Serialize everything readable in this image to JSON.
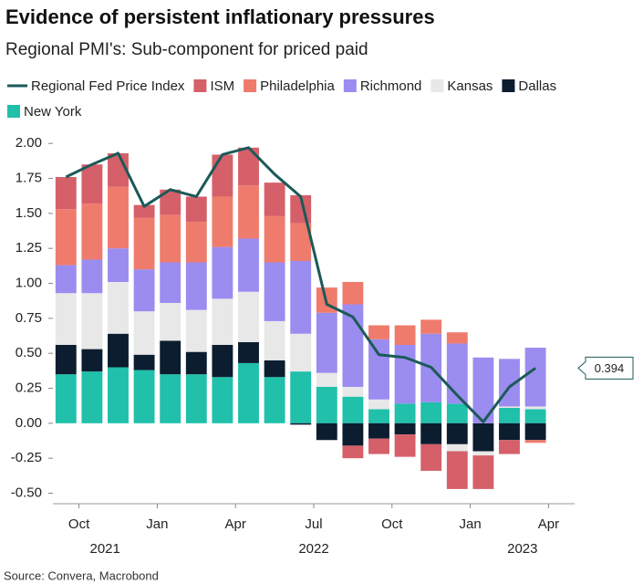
{
  "chart_data": {
    "type": "bar",
    "title": "Evidence of persistent inflationary pressures",
    "subtitle": "Regional PMI's: Sub-component for priced paid",
    "source": "Source: Convera, Macrobond",
    "categories": [
      null,
      "Oct",
      null,
      null,
      "Jan",
      null,
      null,
      "Apr",
      null,
      null,
      "Jul",
      null,
      null,
      "Oct",
      null,
      null,
      "Jan",
      null,
      null,
      "Apr"
    ],
    "years": [
      null,
      null,
      "2021",
      null,
      null,
      null,
      null,
      null,
      null,
      null,
      "2022",
      null,
      null,
      null,
      null,
      null,
      null,
      null,
      "2023",
      null
    ],
    "ylim": [
      -0.575,
      2.06
    ],
    "yticks": [
      {
        "value": 2,
        "label": "2.00"
      },
      1.75,
      {
        "value": 1.5,
        "label": "1.50"
      },
      1.25,
      {
        "value": 1,
        "label": "1.00"
      },
      0.75,
      {
        "value": 0.5,
        "label": "0.50"
      },
      0.25,
      {
        "value": 0,
        "label": "0.00"
      },
      -0.25,
      {
        "value": -0.5,
        "label": "-0.50"
      }
    ],
    "series": [
      {
        "name": "Regional Fed Price Index",
        "type": "line",
        "color": "#1b5a58",
        "values": [
          1.76,
          1.85,
          1.93,
          1.55,
          1.67,
          1.62,
          1.92,
          1.97,
          1.78,
          1.62,
          0.85,
          0.76,
          0.49,
          0.47,
          0.4,
          0.2,
          0.01,
          0.26,
          0.394,
          null
        ],
        "value_labels": [
          null,
          null,
          null,
          null,
          null,
          null,
          null,
          null,
          null,
          null,
          null,
          null,
          null,
          null,
          null,
          null,
          null,
          null,
          "0.394",
          null
        ]
      },
      {
        "name": "ISM",
        "color": "#d5606a",
        "values": [
          0.23,
          0.28,
          0.24,
          0.09,
          0.18,
          0.18,
          0.3,
          0.27,
          0.24,
          0.2,
          0,
          -0.09,
          -0.11,
          -0.16,
          -0.19,
          -0.27,
          -0.24,
          -0.1,
          0,
          null
        ]
      },
      {
        "name": "Philadelphia",
        "color": "#ef7b6c",
        "values": [
          0.4,
          0.4,
          0.44,
          0.37,
          0.34,
          0.29,
          0.36,
          0.38,
          0.33,
          0.27,
          0.18,
          0.16,
          0.1,
          0.14,
          0.1,
          0.08,
          0,
          0,
          -0.02,
          null
        ]
      },
      {
        "name": "Richmond",
        "color": "#9b8cf0",
        "values": [
          0.2,
          0.24,
          0.24,
          0.3,
          0.29,
          0.34,
          0.37,
          0.38,
          0.42,
          0.52,
          0.43,
          0.59,
          0.43,
          0.42,
          0.49,
          0.43,
          0.47,
          0.34,
          0.42,
          null
        ]
      },
      {
        "name": "Kansas",
        "color": "#e8e8e8",
        "values": [
          0.37,
          0.4,
          0.37,
          0.31,
          0.27,
          0.3,
          0.33,
          0.36,
          0.28,
          0.27,
          0.1,
          0.07,
          0.07,
          0,
          0,
          -0.05,
          -0.03,
          0.01,
          0.02,
          null
        ]
      },
      {
        "name": "Dallas",
        "color": "#0c1d30",
        "values": [
          0.21,
          0.16,
          0.24,
          0.11,
          0.24,
          0.16,
          0.23,
          0.15,
          0.12,
          -0.01,
          -0.12,
          -0.16,
          -0.11,
          -0.08,
          -0.15,
          -0.15,
          -0.2,
          -0.12,
          -0.12,
          null
        ]
      },
      {
        "name": "New York",
        "color": "#20c0aa",
        "values": [
          0.35,
          0.37,
          0.4,
          0.38,
          0.35,
          0.35,
          0.33,
          0.43,
          0.33,
          0.37,
          0.26,
          0.19,
          0.1,
          0.14,
          0.15,
          0.14,
          0,
          0.11,
          0.1,
          null
        ]
      }
    ]
  }
}
